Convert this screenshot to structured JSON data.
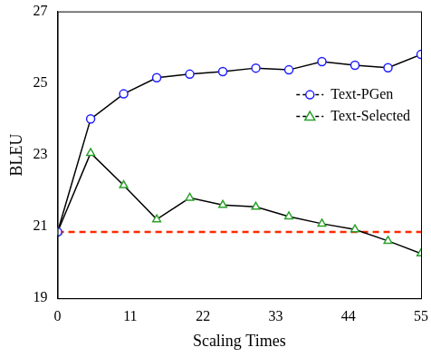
{
  "chart_data": {
    "type": "line",
    "x_label": "Scaling Times",
    "y_label": "BLEU",
    "x": [
      0,
      5,
      10,
      15,
      20,
      25,
      30,
      35,
      40,
      45,
      50,
      55
    ],
    "series": [
      {
        "name": "Text-PGen",
        "color": "#1f1fff",
        "marker": "circle",
        "values": [
          20.85,
          24.0,
          24.7,
          25.15,
          25.25,
          25.32,
          25.42,
          25.37,
          25.6,
          25.5,
          25.43,
          25.8
        ]
      },
      {
        "name": "Text-Selected",
        "color": "#2ca02c",
        "marker": "triangle",
        "values": [
          20.85,
          23.05,
          22.15,
          21.2,
          21.8,
          21.6,
          21.55,
          21.28,
          21.08,
          20.92,
          20.6,
          20.25
        ]
      }
    ],
    "baseline": {
      "value": 20.85,
      "color": "#ff2a00",
      "line_style": "dashed"
    },
    "xlim": [
      0,
      55
    ],
    "xticks": [
      0,
      11,
      22,
      33,
      44,
      55
    ],
    "ylim": [
      19,
      27
    ],
    "yticks": [
      19,
      21,
      23,
      25,
      27
    ],
    "grid": false,
    "legend": "upper right"
  }
}
